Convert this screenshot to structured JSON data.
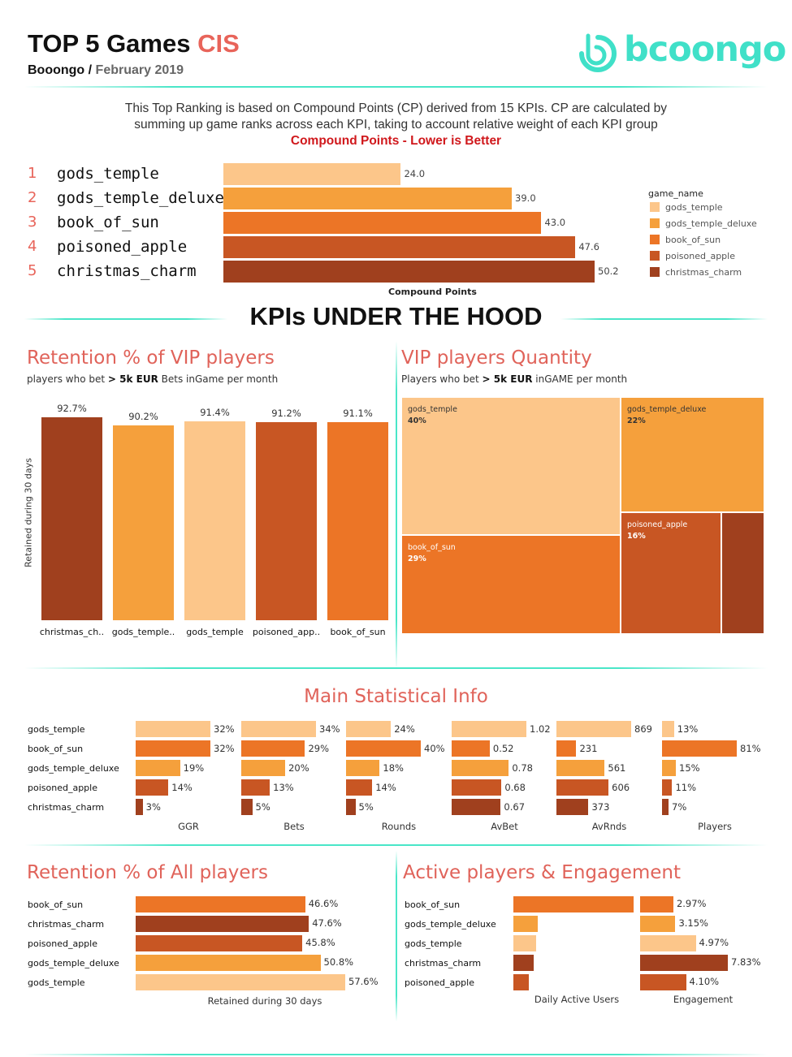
{
  "header": {
    "title_main": "TOP 5 Games ",
    "title_accent": "CIS",
    "subtitle_brand": "Booongo /",
    "subtitle_date": " February 2019",
    "logo_text": "bcoongo"
  },
  "intro": {
    "line1": "This Top Ranking is based on Compound Points (CP) derived from 15 KPIs. CP are calculated by",
    "line2": "summing up game ranks across each KPI, taking to account relative weight of each KPI group",
    "line3": "Compound Points - Lower is Better"
  },
  "colors": {
    "gods_temple": "#fcc68a",
    "gods_temple_deluxe": "#f5a03c",
    "book_of_sun": "#ec7526",
    "poisoned_apple": "#c85623",
    "christmas_charm": "#a0401e",
    "accent": "#e8645a",
    "divider": "#49e6c8"
  },
  "ranking": {
    "axis_label": "Compound Points",
    "legend_title": "game_name",
    "legend": [
      "gods_temple",
      "gods_temple_deluxe",
      "book_of_sun",
      "poisoned_apple",
      "christmas_charm"
    ],
    "items": [
      {
        "rank": "1",
        "name": "gods_temple",
        "value": 24.0,
        "label": "24.0"
      },
      {
        "rank": "2",
        "name": "gods_temple_deluxe",
        "value": 39.0,
        "label": "39.0"
      },
      {
        "rank": "3",
        "name": "book_of_sun",
        "value": 43.0,
        "label": "43.0"
      },
      {
        "rank": "4",
        "name": "poisoned_apple",
        "value": 47.6,
        "label": "47.6"
      },
      {
        "rank": "5",
        "name": "christmas_charm",
        "value": 50.2,
        "label": "50.2"
      }
    ]
  },
  "kpi_heading": "KPIs UNDER THE HOOD",
  "vip_retention": {
    "title": "Retention % of VIP players",
    "sub_pre": "players who bet ",
    "sub_bold": "> 5k EUR",
    "sub_post": " Bets inGame per month",
    "ylabel": "Retained during 30 days"
  },
  "vip_quantity": {
    "title": "VIP players Quantity",
    "sub_pre": "Players who bet ",
    "sub_bold": "> 5k EUR",
    "sub_post": " inGAME per month"
  },
  "main_stats": {
    "title": "Main Statistical Info",
    "rows": [
      "gods_temple",
      "book_of_sun",
      "gods_temple_deluxe",
      "poisoned_apple",
      "christmas_charm"
    ]
  },
  "all_retention": {
    "title": "Retention % of All players",
    "xlabel": "Retained during 30 days"
  },
  "active": {
    "title": "Active players & Engagement",
    "xlabel_dau": "Daily Active Users",
    "xlabel_eng": "Engagement"
  },
  "chart_data": [
    {
      "type": "bar",
      "title": "TOP 5 Games CIS",
      "xlabel": "Compound Points",
      "categories": [
        "gods_temple",
        "gods_temple_deluxe",
        "book_of_sun",
        "poisoned_apple",
        "christmas_charm"
      ],
      "values": [
        24.0,
        39.0,
        43.0,
        47.6,
        50.2
      ],
      "legend": "right"
    },
    {
      "type": "bar",
      "title": "Retention % of VIP players",
      "ylabel": "Retained during 30 days",
      "categories": [
        "christmas_ch..",
        "gods_temple..",
        "gods_temple",
        "poisoned_app..",
        "book_of_sun"
      ],
      "values": [
        92.7,
        90.2,
        91.4,
        91.2,
        91.1
      ],
      "labels": [
        "92.7%",
        "90.2%",
        "91.4%",
        "91.2%",
        "91.1%"
      ]
    },
    {
      "type": "treemap",
      "title": "VIP players Quantity",
      "items": [
        {
          "name": "gods_temple",
          "value": 40,
          "label": "40%"
        },
        {
          "name": "book_of_sun",
          "value": 29,
          "label": "29%"
        },
        {
          "name": "gods_temple_deluxe",
          "value": 22,
          "label": "22%"
        },
        {
          "name": "poisoned_apple",
          "value": 16,
          "label": "16%"
        },
        {
          "name": "christmas_charm",
          "value": 9,
          "label": ""
        }
      ]
    },
    {
      "type": "bar",
      "title": "Main Statistical Info",
      "categories": [
        "gods_temple",
        "book_of_sun",
        "gods_temple_deluxe",
        "poisoned_apple",
        "christmas_charm"
      ],
      "series": [
        {
          "name": "GGR",
          "values": [
            32,
            32,
            19,
            14,
            3
          ],
          "labels": [
            "32%",
            "32%",
            "19%",
            "14%",
            "3%"
          ],
          "max": 32
        },
        {
          "name": "Bets",
          "values": [
            34,
            29,
            20,
            13,
            5
          ],
          "labels": [
            "34%",
            "29%",
            "20%",
            "13%",
            "5%"
          ],
          "max": 34
        },
        {
          "name": "Rounds",
          "values": [
            24,
            40,
            18,
            14,
            5
          ],
          "labels": [
            "24%",
            "40%",
            "18%",
            "14%",
            "5%"
          ],
          "max": 40
        },
        {
          "name": "AvBet",
          "values": [
            1.02,
            0.52,
            0.78,
            0.68,
            0.67
          ],
          "labels": [
            "1.02",
            "0.52",
            "0.78",
            "0.68",
            "0.67"
          ],
          "max": 1.02
        },
        {
          "name": "AvRnds",
          "values": [
            869,
            231,
            561,
            606,
            373
          ],
          "labels": [
            "869",
            "231",
            "561",
            "606",
            "373"
          ],
          "max": 869
        },
        {
          "name": "Players",
          "values": [
            13,
            81,
            15,
            11,
            7
          ],
          "labels": [
            "13%",
            "81%",
            "15%",
            "11%",
            "7%"
          ],
          "max": 81
        }
      ]
    },
    {
      "type": "bar",
      "title": "Retention % of All players",
      "xlabel": "Retained during 30 days",
      "categories": [
        "book_of_sun",
        "christmas_charm",
        "poisoned_apple",
        "gods_temple_deluxe",
        "gods_temple"
      ],
      "values": [
        46.6,
        47.6,
        45.8,
        50.8,
        57.6
      ],
      "labels": [
        "46.6%",
        "47.6%",
        "45.8%",
        "50.8%",
        "57.6%"
      ]
    },
    {
      "type": "bar",
      "title": "Active players & Engagement",
      "categories": [
        "book_of_sun",
        "gods_temple_deluxe",
        "gods_temple",
        "christmas_charm",
        "poisoned_apple"
      ],
      "series": [
        {
          "name": "Daily Active Users",
          "values": [
            100,
            20,
            19,
            17,
            13
          ],
          "labels": [
            "",
            "",
            "",
            "",
            ""
          ]
        },
        {
          "name": "Engagement",
          "values": [
            2.97,
            3.15,
            4.97,
            7.83,
            4.1
          ],
          "labels": [
            "2.97%",
            "3.15%",
            "4.97%",
            "7.83%",
            "4.10%"
          ]
        }
      ]
    }
  ]
}
